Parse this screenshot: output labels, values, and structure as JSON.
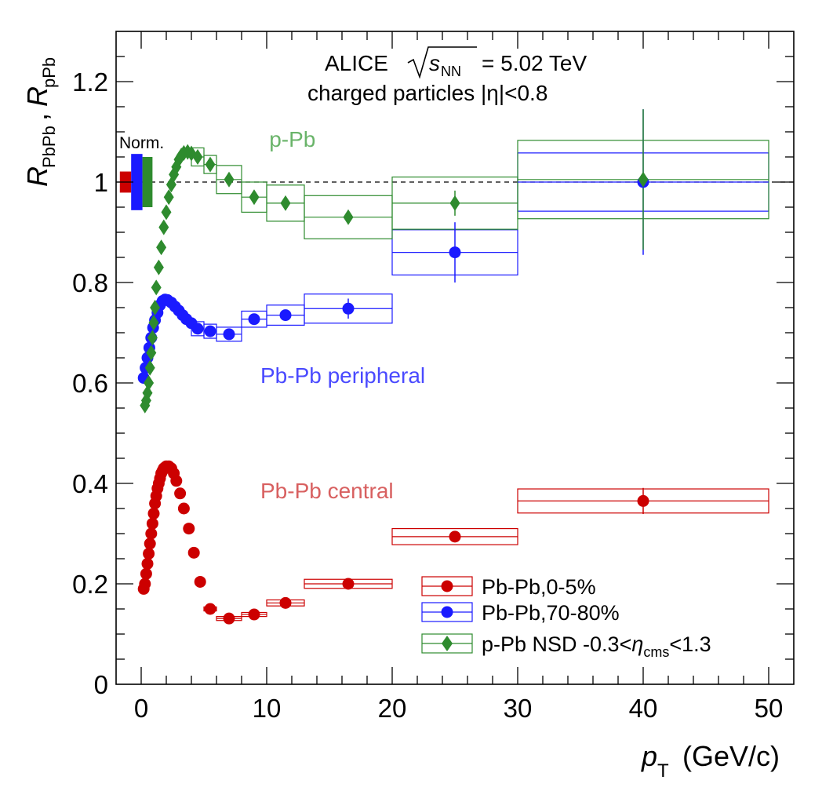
{
  "chart_data": {
    "type": "scatter",
    "title_line1": "ALICE",
    "title_energy": "= 5.02 TeV",
    "title_sqrt_sub": "NN",
    "title_line2": "charged particles |η|<0.8",
    "xlabel": "p",
    "xlabel_sub": "T",
    "xlabel_unit": "(GeV/c)",
    "ylabel": "R",
    "ylabel_sub1": "PbPb",
    "ylabel_sep": ",",
    "ylabel_sub2": "pPb",
    "xlim": [
      -2,
      52
    ],
    "ylim": [
      0,
      1.3
    ],
    "x_ticks": [
      0,
      10,
      20,
      30,
      40,
      50
    ],
    "x_tick_labels": [
      "0",
      "10",
      "20",
      "30",
      "40",
      "50"
    ],
    "y_ticks": [
      0,
      0.2,
      0.4,
      0.6,
      0.8,
      1,
      1.2
    ],
    "y_tick_labels": [
      "0",
      "0.2",
      "0.4",
      "0.6",
      "0.8",
      "1",
      "1.2"
    ],
    "reference_line": 1.0,
    "norm_label": "Norm.",
    "normalization": [
      {
        "series": "Pb-Pb,0-5%",
        "low": 0.979,
        "high": 1.021,
        "color": "#cc0000"
      },
      {
        "series": "Pb-Pb,70-80%",
        "low": 0.944,
        "high": 1.056,
        "color": "#1a1aff"
      },
      {
        "series": "p-Pb NSD",
        "low": 0.95,
        "high": 1.05,
        "color": "#2e8b2e"
      }
    ],
    "annotations": [
      {
        "text": "p-Pb",
        "color": "#6ab46a",
        "x": 10.2,
        "y": 1.07
      },
      {
        "text": "Pb-Pb peripheral",
        "color": "#4a4aff",
        "x": 9.5,
        "y": 0.6
      },
      {
        "text": "Pb-Pb central",
        "color": "#d86060",
        "x": 9.5,
        "y": 0.37
      }
    ],
    "legend": [
      {
        "label": "Pb-Pb,0-5%",
        "marker": "circle",
        "color": "#cc0000"
      },
      {
        "label": "Pb-Pb,70-80%",
        "marker": "circle",
        "color": "#1a1aff"
      },
      {
        "label": "p-Pb NSD -0.3<",
        "label_eta": "η",
        "label_sub": "cms",
        "label_end": "<1.3",
        "marker": "diamond",
        "color": "#2e8b2e"
      }
    ],
    "series": [
      {
        "name": "Pb-Pb,0-5%",
        "color": "#cc0000",
        "marker": "circle",
        "points": [
          {
            "x": 0.2,
            "y": 0.19
          },
          {
            "x": 0.3,
            "y": 0.2
          },
          {
            "x": 0.4,
            "y": 0.22
          },
          {
            "x": 0.5,
            "y": 0.24
          },
          {
            "x": 0.6,
            "y": 0.26
          },
          {
            "x": 0.7,
            "y": 0.28
          },
          {
            "x": 0.8,
            "y": 0.3
          },
          {
            "x": 0.9,
            "y": 0.32
          },
          {
            "x": 1.0,
            "y": 0.34
          },
          {
            "x": 1.1,
            "y": 0.36
          },
          {
            "x": 1.2,
            "y": 0.375
          },
          {
            "x": 1.3,
            "y": 0.39
          },
          {
            "x": 1.4,
            "y": 0.4
          },
          {
            "x": 1.5,
            "y": 0.41
          },
          {
            "x": 1.6,
            "y": 0.42
          },
          {
            "x": 1.7,
            "y": 0.425
          },
          {
            "x": 1.8,
            "y": 0.43
          },
          {
            "x": 1.9,
            "y": 0.432
          },
          {
            "x": 2.0,
            "y": 0.434
          },
          {
            "x": 2.2,
            "y": 0.434
          },
          {
            "x": 2.4,
            "y": 0.43
          },
          {
            "x": 2.6,
            "y": 0.42
          },
          {
            "x": 2.8,
            "y": 0.405
          },
          {
            "x": 3.1,
            "y": 0.38
          },
          {
            "x": 3.4,
            "y": 0.35
          },
          {
            "x": 3.8,
            "y": 0.31
          },
          {
            "x": 4.2,
            "y": 0.262
          },
          {
            "x": 4.7,
            "y": 0.204
          },
          {
            "x": 5.5,
            "y": 0.15,
            "bx": [
              5,
              6
            ],
            "sys": 0.004
          },
          {
            "x": 7.0,
            "y": 0.131,
            "bx": [
              6,
              8
            ],
            "sys": 0.004
          },
          {
            "x": 9.0,
            "y": 0.139,
            "bx": [
              8,
              10
            ],
            "sys": 0.004
          },
          {
            "x": 11.5,
            "y": 0.162,
            "bx": [
              10,
              13
            ],
            "sys": 0.006
          },
          {
            "x": 16.5,
            "y": 0.2,
            "bx": [
              13,
              20
            ],
            "sys": 0.009
          },
          {
            "x": 25.0,
            "y": 0.294,
            "bx": [
              20,
              30
            ],
            "sys": 0.016
          },
          {
            "x": 40.0,
            "y": 0.365,
            "bx": [
              30,
              50
            ],
            "sys": 0.024,
            "stat": 0.026
          }
        ]
      },
      {
        "name": "Pb-Pb,70-80%",
        "color": "#1a1aff",
        "marker": "circle",
        "points": [
          {
            "x": 0.2,
            "y": 0.61
          },
          {
            "x": 0.35,
            "y": 0.63
          },
          {
            "x": 0.5,
            "y": 0.65
          },
          {
            "x": 0.65,
            "y": 0.67
          },
          {
            "x": 0.8,
            "y": 0.69
          },
          {
            "x": 0.95,
            "y": 0.71
          },
          {
            "x": 1.1,
            "y": 0.725
          },
          {
            "x": 1.3,
            "y": 0.74
          },
          {
            "x": 1.5,
            "y": 0.755
          },
          {
            "x": 1.7,
            "y": 0.763
          },
          {
            "x": 1.9,
            "y": 0.766
          },
          {
            "x": 2.1,
            "y": 0.765
          },
          {
            "x": 2.4,
            "y": 0.76
          },
          {
            "x": 2.7,
            "y": 0.752
          },
          {
            "x": 3.0,
            "y": 0.744
          },
          {
            "x": 3.3,
            "y": 0.735
          },
          {
            "x": 3.6,
            "y": 0.727
          },
          {
            "x": 4.0,
            "y": 0.719
          },
          {
            "x": 4.5,
            "y": 0.708,
            "bx": [
              4,
              5
            ],
            "sys": 0.014
          },
          {
            "x": 5.5,
            "y": 0.703,
            "bx": [
              5,
              6
            ],
            "sys": 0.014
          },
          {
            "x": 7.0,
            "y": 0.697,
            "bx": [
              6,
              8
            ],
            "sys": 0.014
          },
          {
            "x": 9.0,
            "y": 0.727,
            "bx": [
              8,
              10
            ],
            "sys": 0.016
          },
          {
            "x": 11.5,
            "y": 0.735,
            "bx": [
              10,
              13
            ],
            "sys": 0.02
          },
          {
            "x": 16.5,
            "y": 0.748,
            "bx": [
              13,
              20
            ],
            "sys": 0.029,
            "stat": 0.02
          },
          {
            "x": 25.0,
            "y": 0.86,
            "bx": [
              20,
              30
            ],
            "sys": 0.045,
            "stat": 0.06
          },
          {
            "x": 40.0,
            "y": 1.0,
            "bx": [
              30,
              50
            ],
            "sys": 0.058,
            "stat": 0.145
          }
        ]
      },
      {
        "name": "p-Pb NSD",
        "color": "#2e8b2e",
        "marker": "diamond",
        "points": [
          {
            "x": 0.3,
            "y": 0.555
          },
          {
            "x": 0.4,
            "y": 0.565
          },
          {
            "x": 0.5,
            "y": 0.58
          },
          {
            "x": 0.6,
            "y": 0.6
          },
          {
            "x": 0.7,
            "y": 0.63
          },
          {
            "x": 0.8,
            "y": 0.66
          },
          {
            "x": 0.9,
            "y": 0.69
          },
          {
            "x": 1.0,
            "y": 0.72
          },
          {
            "x": 1.1,
            "y": 0.75
          },
          {
            "x": 1.2,
            "y": 0.79
          },
          {
            "x": 1.4,
            "y": 0.83
          },
          {
            "x": 1.6,
            "y": 0.87
          },
          {
            "x": 1.8,
            "y": 0.91
          },
          {
            "x": 2.0,
            "y": 0.94
          },
          {
            "x": 2.2,
            "y": 0.97
          },
          {
            "x": 2.4,
            "y": 0.995
          },
          {
            "x": 2.6,
            "y": 1.015
          },
          {
            "x": 2.8,
            "y": 1.03
          },
          {
            "x": 3.0,
            "y": 1.045
          },
          {
            "x": 3.2,
            "y": 1.053
          },
          {
            "x": 3.4,
            "y": 1.058
          },
          {
            "x": 3.7,
            "y": 1.06
          },
          {
            "x": 4.0,
            "y": 1.057
          },
          {
            "x": 4.5,
            "y": 1.05,
            "bx": [
              4,
              5
            ],
            "sys": 0.018
          },
          {
            "x": 5.5,
            "y": 1.035,
            "bx": [
              5,
              6
            ],
            "sys": 0.018
          },
          {
            "x": 7.0,
            "y": 1.005,
            "bx": [
              6,
              8
            ],
            "sys": 0.028
          },
          {
            "x": 9.0,
            "y": 0.97,
            "bx": [
              8,
              10
            ],
            "sys": 0.03
          },
          {
            "x": 11.5,
            "y": 0.958,
            "bx": [
              10,
              13
            ],
            "sys": 0.036
          },
          {
            "x": 16.5,
            "y": 0.93,
            "bx": [
              13,
              20
            ],
            "sys": 0.043
          },
          {
            "x": 25.0,
            "y": 0.958,
            "bx": [
              20,
              30
            ],
            "sys": 0.052,
            "stat": 0.025
          },
          {
            "x": 40.0,
            "y": 1.005,
            "bx": [
              30,
              50
            ],
            "sys": 0.078,
            "stat": 0.14
          }
        ]
      }
    ]
  }
}
